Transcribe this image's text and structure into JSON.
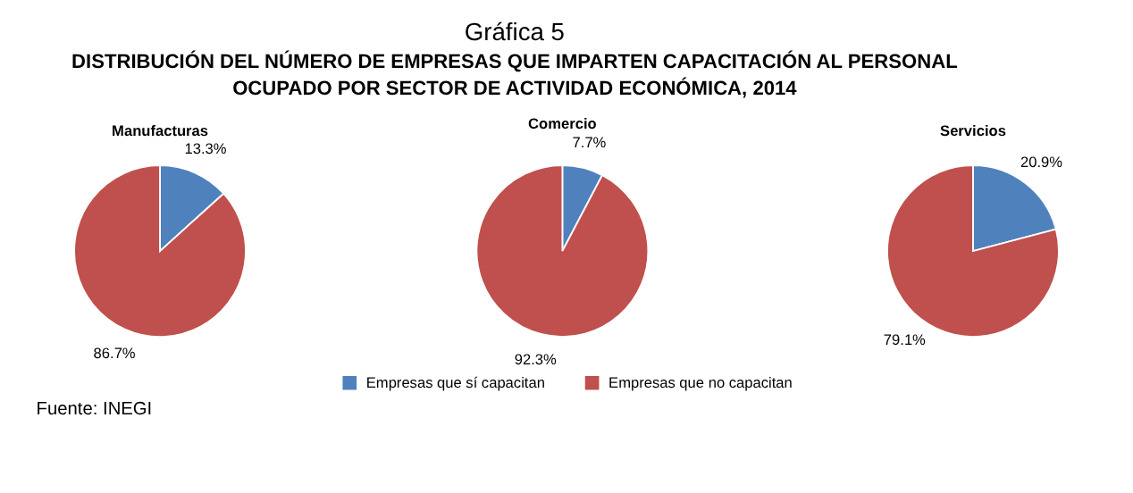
{
  "chart_data": [
    {
      "type": "pie",
      "title": "Manufacturas",
      "annotations": [
        "Gráfica 5",
        "DISTRIBUCIÓN DEL NÚMERO DE EMPRESAS QUE IMPARTEN CAPACITACIÓN AL PERSONAL\nOCUPADO POR SECTOR DE ACTIVIDAD ECONÓMICA, 2014",
        "Fuente: INEGI"
      ],
      "categories": [
        null,
        null
      ],
      "values": [
        13.3,
        86.7
      ],
      "colors": [
        "#4f81bd",
        "#c0504d"
      ],
      "value_labels": [
        "13.3%",
        "86.7%"
      ],
      "legend": false
    },
    {
      "type": "pie",
      "title": "Comercio",
      "categories": [
        "Empresas que sí capacitan",
        "Empresas que no capacitan"
      ],
      "values": [
        7.7,
        92.3
      ],
      "colors": [
        "#4f81bd",
        "#c0504d"
      ],
      "value_labels": [
        "7.7%",
        "92.3%"
      ],
      "legend": "bottom"
    },
    {
      "type": "pie",
      "title": "Servicios",
      "categories": [
        null,
        null
      ],
      "values": [
        20.9,
        79.1
      ],
      "colors": [
        "#4f81bd",
        "#c0504d"
      ],
      "value_labels": [
        "20.9%",
        "79.1%"
      ],
      "legend": false
    }
  ]
}
